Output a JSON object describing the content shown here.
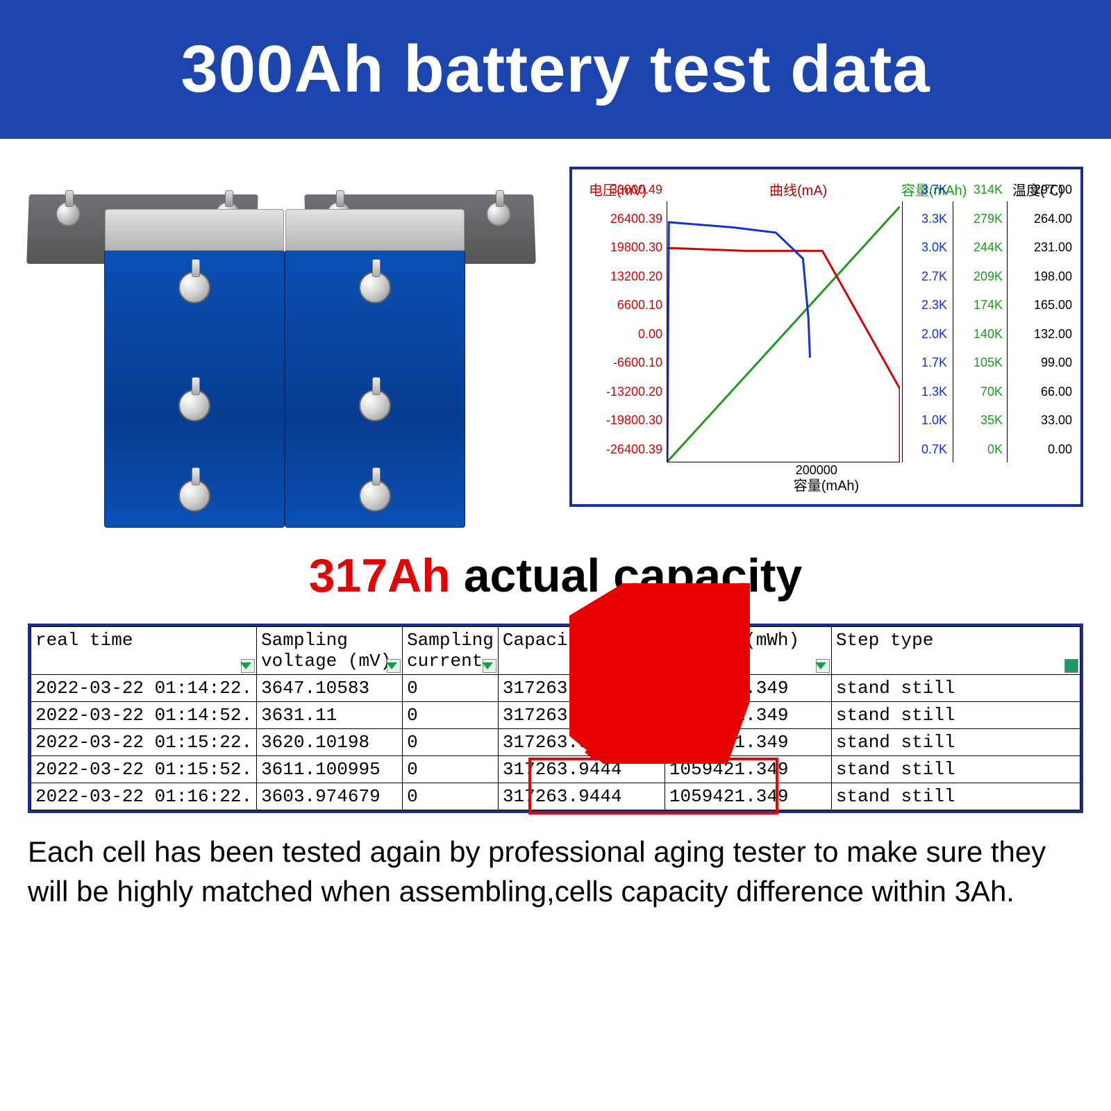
{
  "banner": {
    "title": "300Ah battery test data",
    "bg_color": "#1c45b0",
    "text_color": "#ffffff",
    "fontsize": 96
  },
  "battery_image": {
    "cell_body_color": "#0b4fb5",
    "cell_top_color": "#d8d8d8",
    "back_cell_color": "#606068",
    "terminal_color": "#c0c0c0"
  },
  "chart": {
    "border_color": "#1c2f8f",
    "headers": {
      "voltage": "电压(mV)",
      "current": "曲线(mA)",
      "capacity": "容量(mAh)",
      "temperature": "温度(℃)"
    },
    "voltage_axis": {
      "color": "#d40000",
      "ticks": [
        "33000.49",
        "26400.39",
        "19800.30",
        "13200.20",
        "6600.10",
        "0.00",
        "-6600.10",
        "-13200.20",
        "-19800.30",
        "-26400.39"
      ]
    },
    "current_axis": {
      "color": "#1030d8",
      "ticks": [
        "3.7K",
        "3.3K",
        "3.0K",
        "2.7K",
        "2.3K",
        "2.0K",
        "1.7K",
        "1.3K",
        "1.0K",
        "0.7K"
      ]
    },
    "capacity_axis": {
      "color": "#1a9c1a",
      "ticks": [
        "314K",
        "279K",
        "244K",
        "209K",
        "174K",
        "140K",
        "105K",
        "70K",
        "35K",
        "0K"
      ]
    },
    "temperature_axis": {
      "color": "#000000",
      "ticks": [
        "297.00",
        "264.00",
        "231.00",
        "198.00",
        "165.00",
        "132.00",
        "99.00",
        "66.00",
        "33.00",
        "0.00"
      ]
    },
    "x_axis": {
      "tick": "200000",
      "label": "容量(mAh)"
    },
    "curves": {
      "voltage_red": {
        "color": "#d40000",
        "stroke_width": 3,
        "points": [
          [
            0,
            18
          ],
          [
            10,
            18
          ],
          [
            100,
            19
          ],
          [
            200,
            19
          ],
          [
            300,
            72
          ],
          [
            300,
            100
          ]
        ]
      },
      "current_blue": {
        "color": "#1030d8",
        "stroke_width": 3,
        "points": [
          [
            0,
            100
          ],
          [
            2,
            8
          ],
          [
            85,
            10
          ],
          [
            140,
            12
          ],
          [
            175,
            22
          ],
          [
            182,
            45
          ],
          [
            184,
            60
          ]
        ]
      },
      "capacity_green": {
        "color": "#1a9c1a",
        "stroke_width": 3,
        "points": [
          [
            0,
            100
          ],
          [
            300,
            2
          ]
        ]
      }
    }
  },
  "capacity_headline": {
    "highlight": "317Ah",
    "rest": " actual capacity",
    "highlight_color": "#e60000",
    "fontsize": 68
  },
  "arrow": {
    "color": "#e60000"
  },
  "table": {
    "border_color": "#1c2f8f",
    "columns": [
      {
        "key": "real_time",
        "label": "real time"
      },
      {
        "key": "voltage",
        "label_line1": "Sampling",
        "label_line2": "voltage (mV)"
      },
      {
        "key": "current",
        "label_line1": "Sampling",
        "label_line2": "current"
      },
      {
        "key": "capacity",
        "label": "Capacity (mAh)"
      },
      {
        "key": "energy",
        "label": "Energy (mWh)"
      },
      {
        "key": "step",
        "label": "Step type"
      }
    ],
    "rows": [
      {
        "real_time": "2022-03-22 01:14:22.",
        "voltage": "3647.10583",
        "current": "0",
        "capacity": "317263.9444",
        "energy": "1059421.349",
        "step": "stand still"
      },
      {
        "real_time": "2022-03-22 01:14:52.",
        "voltage": "3631.11",
        "current": "0",
        "capacity": "317263.9444",
        "energy": "1059421.349",
        "step": "stand still"
      },
      {
        "real_time": "2022-03-22 01:15:22.",
        "voltage": "3620.10198",
        "current": "0",
        "capacity": "317263.9444",
        "energy": "1059421.349",
        "step": "stand still"
      },
      {
        "real_time": "2022-03-22 01:15:52.",
        "voltage": "3611.100995",
        "current": "0",
        "capacity": "317263.9444",
        "energy": "1059421.349",
        "step": "stand still"
      },
      {
        "real_time": "2022-03-22 01:16:22.",
        "voltage": "3603.974679",
        "current": "0",
        "capacity": "317263.9444",
        "energy": "1059421.349",
        "step": "stand still"
      }
    ],
    "highlight_box": {
      "color": "#e60000",
      "row_start": 3,
      "row_end": 4
    }
  },
  "footer": {
    "text": "Each cell has been tested again by professional aging tester to make sure they will be highly matched when assembling,cells capacity difference within 3Ah.",
    "fontsize": 42
  }
}
